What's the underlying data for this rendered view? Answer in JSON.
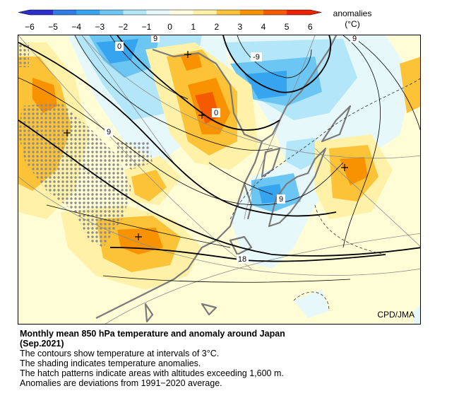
{
  "legend": {
    "title_line1": "anomalies",
    "title_line2": "(°C)",
    "ticks": [
      "−6",
      "−5",
      "−4",
      "−3",
      "−2",
      "−1",
      "0",
      "1",
      "2",
      "3",
      "4",
      "5",
      "6"
    ],
    "colors": [
      "#2b2fc9",
      "#2e7ce6",
      "#36a4ef",
      "#6cc6f4",
      "#b2e6f8",
      "#e6f8fa",
      "#fffde0",
      "#fff2a8",
      "#fcc238",
      "#f99200",
      "#f65a00",
      "#ed2300"
    ]
  },
  "map": {
    "credit": "CPD/JMA",
    "contour_labels": [
      "0",
      "9",
      "-9",
      "0",
      "9",
      "9",
      "18",
      "9"
    ]
  },
  "caption": {
    "title_line1": "Monthly mean 850 hPa temperature and anomaly around Japan",
    "title_line2": "(Sep.2021)",
    "line1": "The contours show temperature at intervals of 3°C.",
    "line2": "The shading indicates temperature anomalies.",
    "line3": "The hatch patterns indicate areas with altitudes exceeding 1,600 m.",
    "line4": "Anomalies are deviations from 1991−2020 average."
  }
}
